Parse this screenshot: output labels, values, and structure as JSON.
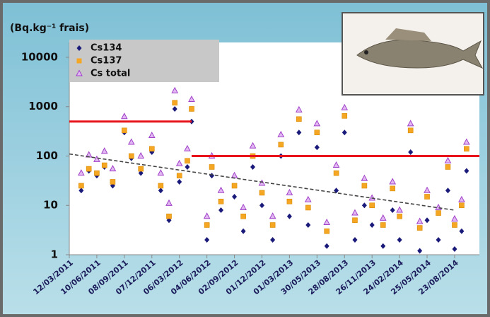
{
  "chart_data": {
    "type": "scatter",
    "title": "(Bq.kg⁻¹ frais)",
    "log_y": true,
    "legend": "upper left",
    "x": [
      "20/04/2011",
      "15/05/2011",
      "10/06/2011",
      "05/07/2011",
      "01/08/2011",
      "08/09/2011",
      "01/10/2011",
      "01/11/2011",
      "07/12/2011",
      "05/01/2012",
      "01/02/2012",
      "20/02/2012",
      "06/03/2012",
      "01/04/2012",
      "15/04/2012",
      "04/06/2012",
      "20/06/2012",
      "20/07/2012",
      "02/09/2012",
      "01/10/2012",
      "01/11/2012",
      "01/12/2012",
      "05/01/2013",
      "01/02/2013",
      "01/03/2013",
      "01/04/2013",
      "01/05/2013",
      "30/05/2013",
      "01/07/2013",
      "01/08/2013",
      "28/08/2013",
      "01/10/2013",
      "01/11/2013",
      "26/11/2013",
      "01/01/2014",
      "01/02/2014",
      "24/02/2014",
      "01/04/2014",
      "01/05/2014",
      "25/05/2014",
      "01/07/2014",
      "01/08/2014",
      "23/08/2014",
      "15/09/2014",
      "01/10/2014"
    ],
    "series": [
      {
        "name": "Cs134",
        "color": "#1a1a7a",
        "marker": "diamond",
        "values": [
          20,
          50,
          40,
          60,
          25,
          300,
          90,
          45,
          120,
          20,
          5,
          900,
          30,
          60,
          500,
          2,
          40,
          8,
          15,
          3,
          60,
          10,
          2,
          100,
          6,
          300,
          4,
          150,
          1.5,
          20,
          300,
          2,
          10,
          4,
          1.5,
          8,
          2,
          120,
          1.2,
          5,
          2,
          20,
          1.3,
          3,
          50
        ]
      },
      {
        "name": "Cs137",
        "color": "#f5a623",
        "marker": "square",
        "values": [
          25,
          55,
          45,
          65,
          30,
          330,
          100,
          55,
          140,
          25,
          6,
          1200,
          40,
          80,
          900,
          4,
          60,
          12,
          25,
          6,
          100,
          18,
          4,
          170,
          12,
          560,
          9,
          300,
          3,
          45,
          650,
          5,
          25,
          10,
          4,
          22,
          6,
          330,
          3.5,
          15,
          7,
          60,
          4,
          10,
          140
        ]
      },
      {
        "name": "Cs total",
        "color": "#a040c8",
        "marker": "triangle",
        "values": [
          45,
          105,
          85,
          125,
          55,
          630,
          190,
          100,
          260,
          45,
          11,
          2100,
          70,
          140,
          1400,
          6,
          100,
          20,
          40,
          9,
          160,
          28,
          6,
          270,
          18,
          860,
          13,
          450,
          4.5,
          65,
          950,
          7,
          35,
          14,
          5.5,
          30,
          8,
          450,
          4.7,
          20,
          9,
          80,
          5.3,
          13,
          190
        ]
      }
    ],
    "reference_lines": [
      {
        "value": 500,
        "color": "#e8141c",
        "x": [
          "12/03/2011",
          "15/04/2012"
        ]
      },
      {
        "value": 100,
        "color": "#e8141c",
        "x": [
          "15/04/2012",
          "12/11/2014"
        ]
      }
    ],
    "trend": {
      "color": "#444444",
      "x": [
        "12/03/2011",
        "23/08/2014"
      ],
      "values": [
        110,
        8
      ]
    },
    "xlim": [
      "12/03/2011",
      "12/11/2014"
    ],
    "xticks": [
      "12/03/2011",
      "10/06/2011",
      "08/09/2011",
      "07/12/2011",
      "06/03/2012",
      "04/06/2012",
      "02/09/2012",
      "01/12/2012",
      "01/03/2013",
      "30/05/2013",
      "28/08/2013",
      "26/11/2013",
      "24/02/2014",
      "25/05/2014",
      "23/08/2014"
    ],
    "ylim": [
      1,
      20000
    ],
    "yticks": [
      1,
      10,
      100,
      1000,
      10000
    ]
  }
}
